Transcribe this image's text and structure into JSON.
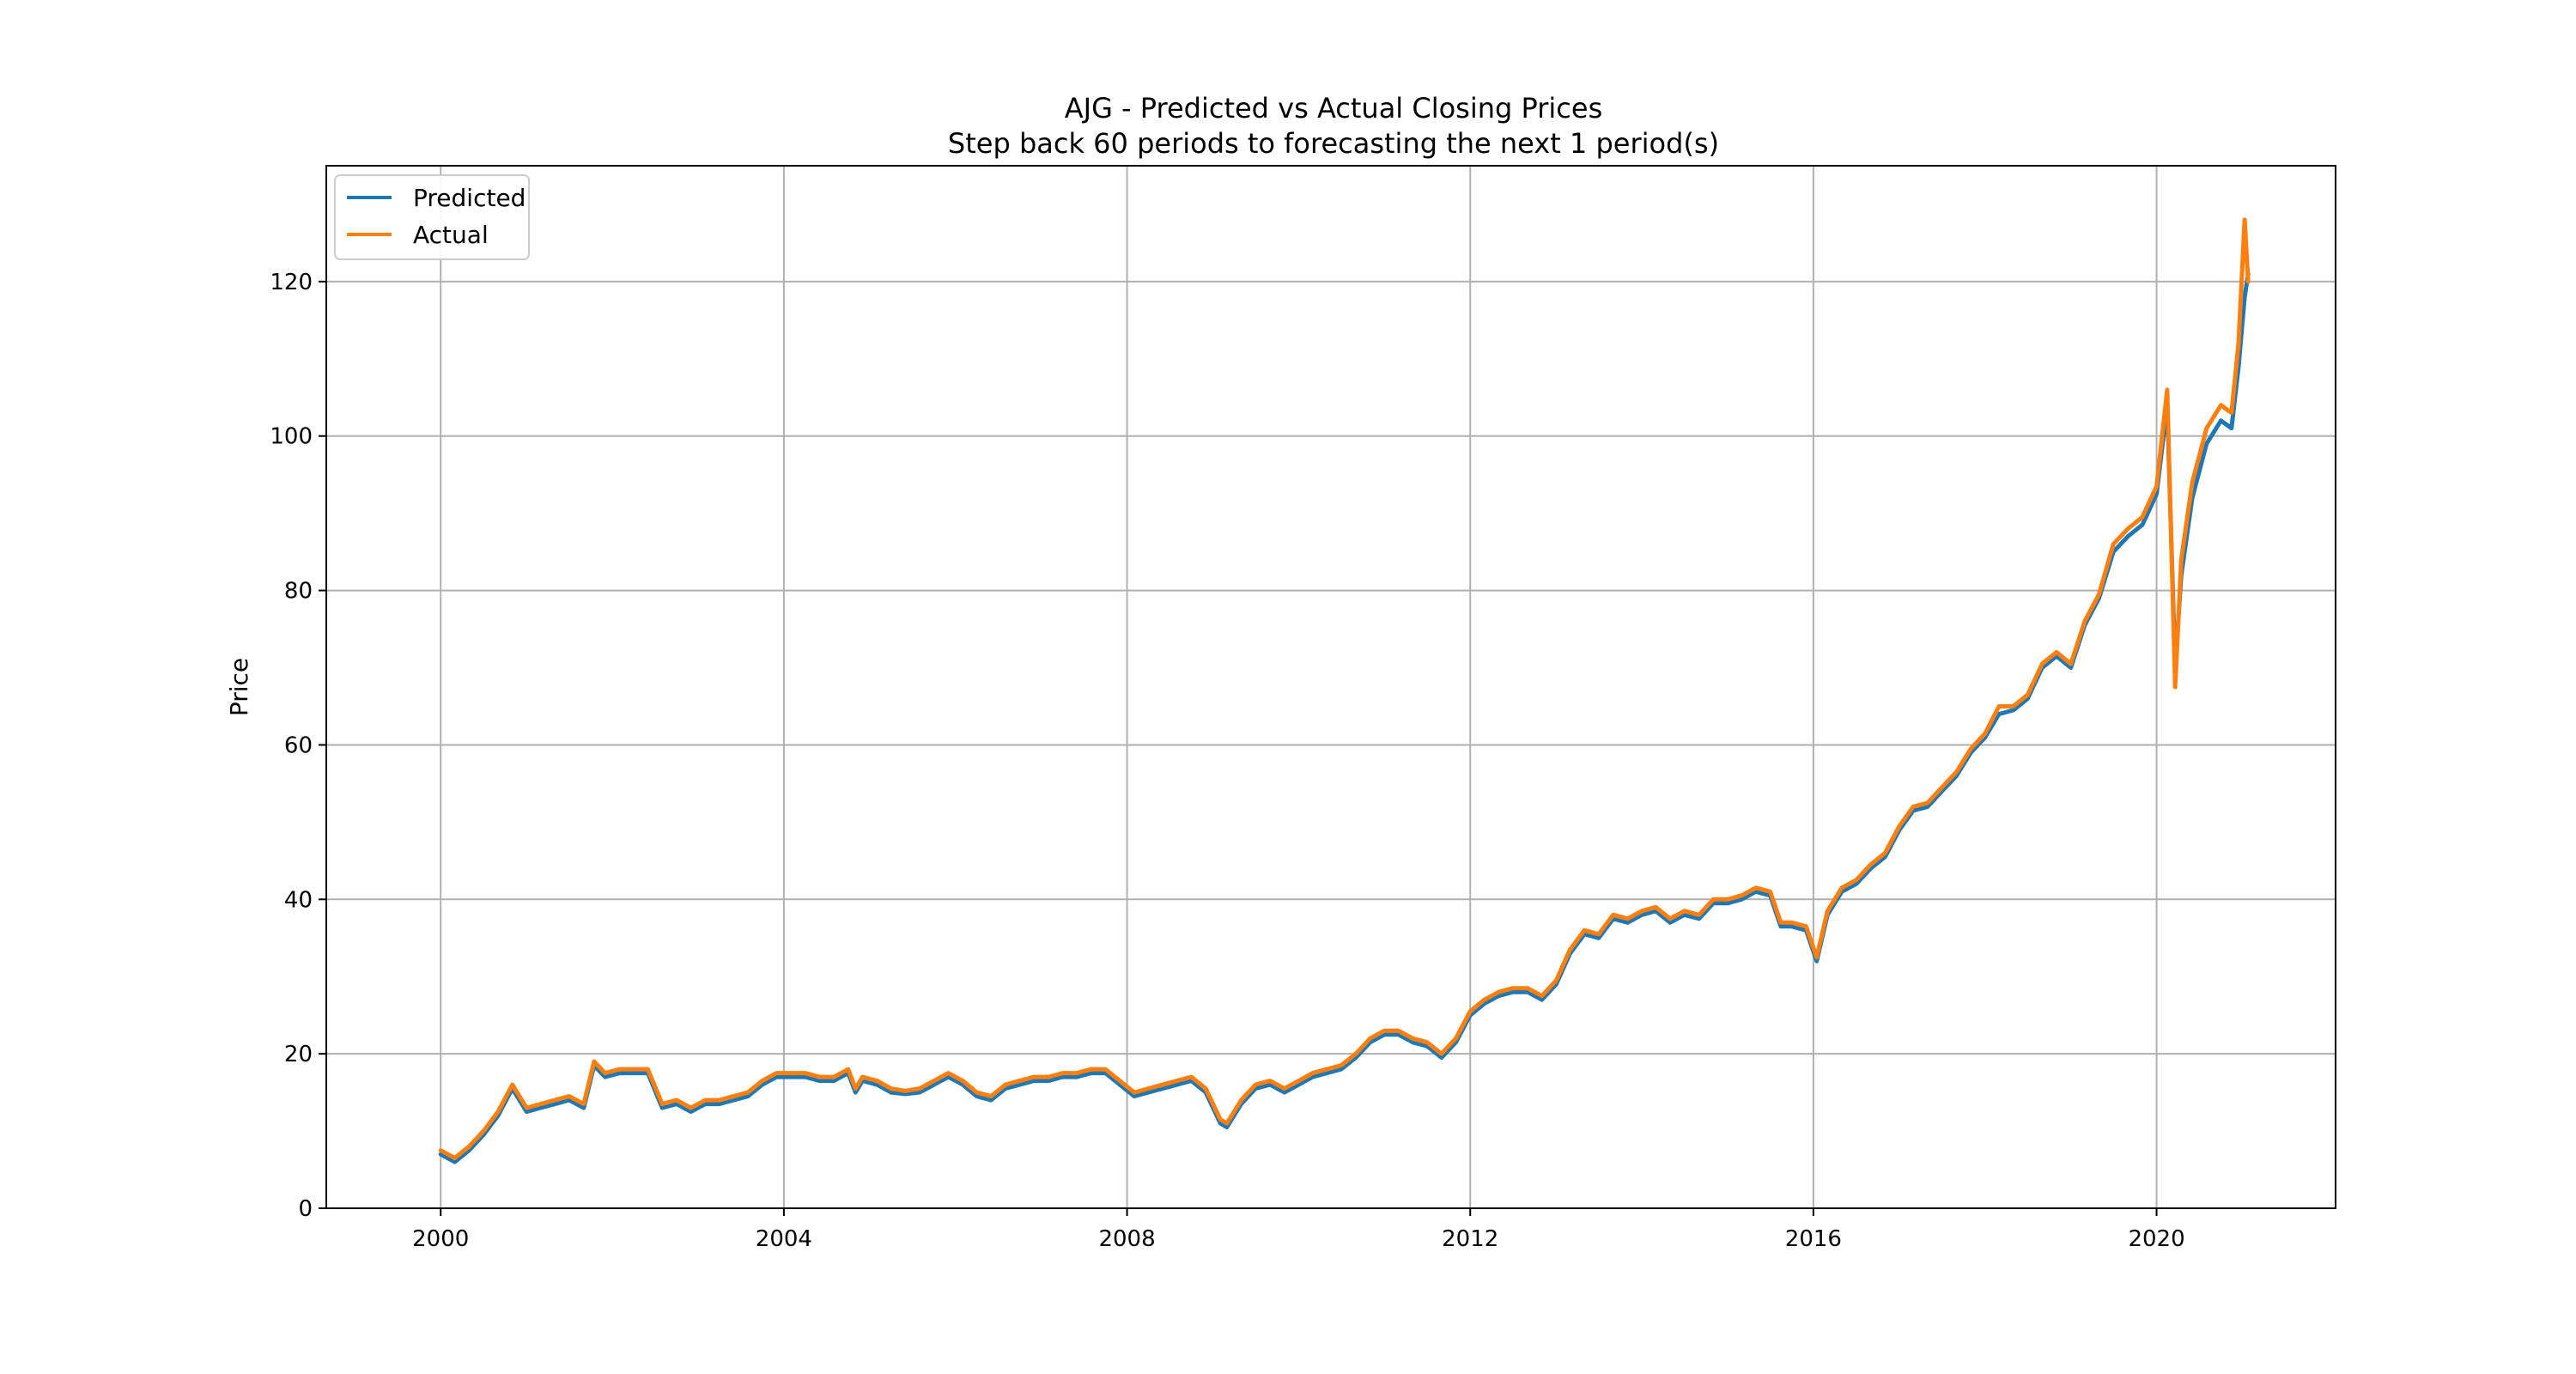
{
  "chart_data": {
    "type": "line",
    "title": "AJG - Predicted vs Actual Closing Prices",
    "subtitle": "Step back 60 periods to forecasting the next 1 period(s)",
    "xlabel": "",
    "ylabel": "Price",
    "x_axis_type": "date",
    "xlim": [
      "1998-09-01",
      "2022-02-01"
    ],
    "ylim": [
      0,
      135
    ],
    "x_ticks": [
      "2000",
      "2004",
      "2008",
      "2012",
      "2016",
      "2020"
    ],
    "y_ticks": [
      0,
      20,
      40,
      60,
      80,
      100,
      120
    ],
    "grid": true,
    "legend_position": "top-left",
    "x": [
      "2000-01-01",
      "2000-03-01",
      "2000-05-01",
      "2000-07-01",
      "2000-09-01",
      "2000-11-01",
      "2001-01-01",
      "2001-03-01",
      "2001-05-01",
      "2001-07-01",
      "2001-09-01",
      "2001-10-15",
      "2001-12-01",
      "2002-02-01",
      "2002-04-01",
      "2002-06-01",
      "2002-08-01",
      "2002-10-01",
      "2002-12-01",
      "2003-02-01",
      "2003-04-01",
      "2003-06-01",
      "2003-08-01",
      "2003-10-01",
      "2003-12-01",
      "2004-02-01",
      "2004-04-01",
      "2004-06-01",
      "2004-08-01",
      "2004-10-01",
      "2004-11-01",
      "2004-12-01",
      "2005-02-01",
      "2005-04-01",
      "2005-06-01",
      "2005-08-01",
      "2005-10-01",
      "2005-12-01",
      "2006-02-01",
      "2006-04-01",
      "2006-06-01",
      "2006-08-01",
      "2006-10-01",
      "2006-12-01",
      "2007-02-01",
      "2007-04-01",
      "2007-06-01",
      "2007-08-01",
      "2007-10-01",
      "2007-12-01",
      "2008-02-01",
      "2008-04-01",
      "2008-06-01",
      "2008-08-01",
      "2008-10-01",
      "2008-12-01",
      "2009-02-01",
      "2009-03-01",
      "2009-05-01",
      "2009-07-01",
      "2009-09-01",
      "2009-11-01",
      "2010-01-01",
      "2010-03-01",
      "2010-05-01",
      "2010-07-01",
      "2010-09-01",
      "2010-11-01",
      "2011-01-01",
      "2011-03-01",
      "2011-05-01",
      "2011-07-01",
      "2011-09-01",
      "2011-11-01",
      "2012-01-01",
      "2012-03-01",
      "2012-05-01",
      "2012-07-01",
      "2012-09-01",
      "2012-11-01",
      "2013-01-01",
      "2013-03-01",
      "2013-05-01",
      "2013-07-01",
      "2013-09-01",
      "2013-11-01",
      "2014-01-01",
      "2014-03-01",
      "2014-05-01",
      "2014-07-01",
      "2014-09-01",
      "2014-11-01",
      "2015-01-01",
      "2015-03-01",
      "2015-05-01",
      "2015-07-01",
      "2015-08-15",
      "2015-10-01",
      "2015-12-01",
      "2016-01-15",
      "2016-03-01",
      "2016-05-01",
      "2016-07-01",
      "2016-09-01",
      "2016-11-01",
      "2017-01-01",
      "2017-03-01",
      "2017-05-01",
      "2017-07-01",
      "2017-09-01",
      "2017-11-01",
      "2018-01-01",
      "2018-03-01",
      "2018-05-01",
      "2018-07-01",
      "2018-09-01",
      "2018-11-01",
      "2019-01-01",
      "2019-03-01",
      "2019-05-01",
      "2019-07-01",
      "2019-09-01",
      "2019-11-01",
      "2020-01-01",
      "2020-02-15",
      "2020-03-20",
      "2020-04-15",
      "2020-06-01",
      "2020-08-01",
      "2020-10-01",
      "2020-11-15",
      "2020-12-15",
      "2021-01-10",
      "2021-01-25"
    ],
    "series": [
      {
        "name": "Predicted",
        "color": "#1f77b4",
        "values": [
          7.0,
          6.0,
          7.5,
          9.5,
          12.0,
          15.5,
          12.5,
          13.0,
          13.5,
          14.0,
          13.0,
          18.5,
          17.0,
          17.5,
          17.5,
          17.5,
          13.0,
          13.5,
          12.5,
          13.5,
          13.5,
          14.0,
          14.5,
          16.0,
          17.0,
          17.0,
          17.0,
          16.5,
          16.5,
          17.5,
          15.0,
          16.5,
          16.0,
          15.0,
          14.8,
          15.0,
          16.0,
          17.0,
          16.0,
          14.5,
          14.0,
          15.5,
          16.0,
          16.5,
          16.5,
          17.0,
          17.0,
          17.5,
          17.5,
          16.0,
          14.5,
          15.0,
          15.5,
          16.0,
          16.5,
          15.0,
          11.0,
          10.5,
          13.5,
          15.5,
          16.0,
          15.0,
          16.0,
          17.0,
          17.5,
          18.0,
          19.5,
          21.5,
          22.5,
          22.5,
          21.5,
          21.0,
          19.5,
          21.5,
          25.0,
          26.5,
          27.5,
          28.0,
          28.0,
          27.0,
          29.0,
          33.0,
          35.5,
          35.0,
          37.5,
          37.0,
          38.0,
          38.5,
          37.0,
          38.0,
          37.5,
          39.5,
          39.5,
          40.0,
          41.0,
          40.5,
          36.5,
          36.5,
          36.0,
          32.0,
          38.0,
          41.0,
          42.0,
          44.0,
          45.5,
          49.0,
          51.5,
          52.0,
          54.0,
          56.0,
          59.0,
          61.0,
          64.0,
          64.5,
          66.0,
          70.0,
          71.5,
          70.0,
          75.5,
          79.0,
          85.0,
          87.0,
          88.5,
          92.5,
          104.0,
          70.0,
          82.0,
          92.0,
          99.0,
          102.0,
          101.0,
          109.0,
          118.0,
          121.0
        ]
      },
      {
        "name": "Actual",
        "color": "#ff7f0e",
        "values": [
          7.5,
          6.5,
          8.0,
          10.0,
          12.5,
          16.0,
          13.0,
          13.5,
          14.0,
          14.5,
          13.5,
          19.0,
          17.5,
          18.0,
          18.0,
          18.0,
          13.5,
          14.0,
          13.0,
          14.0,
          14.0,
          14.5,
          15.0,
          16.5,
          17.5,
          17.5,
          17.5,
          17.0,
          17.0,
          18.0,
          15.5,
          17.0,
          16.5,
          15.5,
          15.2,
          15.5,
          16.5,
          17.5,
          16.5,
          15.0,
          14.5,
          16.0,
          16.5,
          17.0,
          17.0,
          17.5,
          17.5,
          18.0,
          18.0,
          16.5,
          15.0,
          15.5,
          16.0,
          16.5,
          17.0,
          15.5,
          11.5,
          11.0,
          14.0,
          16.0,
          16.5,
          15.5,
          16.5,
          17.5,
          18.0,
          18.5,
          20.0,
          22.0,
          23.0,
          23.0,
          22.0,
          21.5,
          20.0,
          22.0,
          25.5,
          27.0,
          28.0,
          28.5,
          28.5,
          27.5,
          29.5,
          33.5,
          36.0,
          35.5,
          38.0,
          37.5,
          38.5,
          39.0,
          37.5,
          38.5,
          38.0,
          40.0,
          40.0,
          40.5,
          41.5,
          41.0,
          37.0,
          37.0,
          36.5,
          32.5,
          38.5,
          41.5,
          42.5,
          44.5,
          46.0,
          49.5,
          52.0,
          52.5,
          54.5,
          56.5,
          59.5,
          61.5,
          65.0,
          65.0,
          66.5,
          70.5,
          72.0,
          70.5,
          76.0,
          79.5,
          86.0,
          88.0,
          89.5,
          93.5,
          106.0,
          67.5,
          84.0,
          94.0,
          101.0,
          104.0,
          103.0,
          112.0,
          128.0,
          120.0
        ]
      }
    ]
  }
}
